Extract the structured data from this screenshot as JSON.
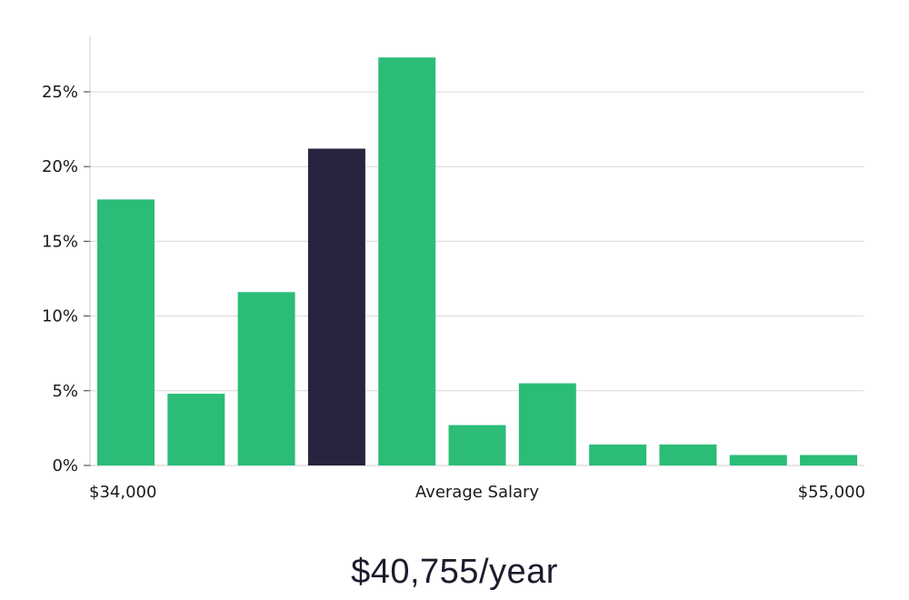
{
  "chart_data": {
    "type": "bar",
    "categories": [
      "",
      "",
      "",
      "",
      "",
      "",
      "",
      "",
      "",
      "",
      ""
    ],
    "values": [
      17.8,
      4.8,
      11.6,
      21.2,
      27.3,
      2.7,
      5.5,
      1.4,
      1.4,
      0.7,
      0.7
    ],
    "highlight_index": 3,
    "colors": {
      "bar": "#2bbd78",
      "highlight": "#28243f",
      "grid": "#d9d9d9",
      "axis": "#cccccc"
    },
    "yticks": [
      "0%",
      "5%",
      "10%",
      "15%",
      "20%",
      "25%"
    ],
    "ytick_values": [
      0,
      5,
      10,
      15,
      20,
      25
    ],
    "ylim": [
      0,
      28.5
    ],
    "x_labels": {
      "left": "$34,000",
      "center": "Average Salary",
      "right": "$55,000"
    },
    "grid": true
  },
  "salary_text": "$40,755/year"
}
